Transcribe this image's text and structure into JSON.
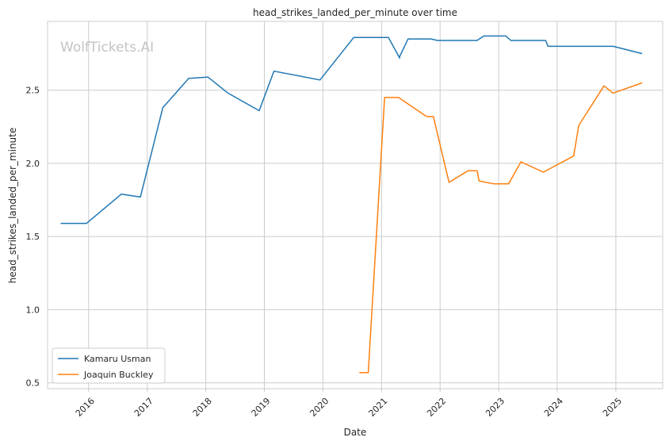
{
  "chart_data": {
    "type": "line",
    "title": "head_strikes_landed_per_minute over time",
    "xlabel": "Date",
    "ylabel": "head_strikes_landed_per_minute",
    "watermark": "WolfTickets.AI",
    "x_ticks": [
      "2016",
      "2017",
      "2018",
      "2019",
      "2020",
      "2021",
      "2022",
      "2023",
      "2024",
      "2025"
    ],
    "y_ticks": [
      "0.5",
      "1.0",
      "1.5",
      "2.0",
      "2.5"
    ],
    "xlim": [
      "2015-04-20",
      "2025-10-20"
    ],
    "ylim": [
      0.46,
      2.97
    ],
    "grid": true,
    "legend_position": "lower-left",
    "series": [
      {
        "name": "Kamaru Usman",
        "color": "#1f77b4",
        "points": [
          [
            "2015-07-11",
            1.59
          ],
          [
            "2015-12-19",
            1.59
          ],
          [
            "2016-07-23",
            1.79
          ],
          [
            "2016-11-19",
            1.77
          ],
          [
            "2017-04-08",
            2.38
          ],
          [
            "2017-09-16",
            2.58
          ],
          [
            "2018-01-14",
            2.59
          ],
          [
            "2018-05-19",
            2.48
          ],
          [
            "2018-11-30",
            2.36
          ],
          [
            "2019-03-02",
            2.63
          ],
          [
            "2019-12-14",
            2.57
          ],
          [
            "2020-07-11",
            2.86
          ],
          [
            "2021-02-13",
            2.86
          ],
          [
            "2021-04-24",
            2.72
          ],
          [
            "2021-04-24",
            2.73
          ],
          [
            "2021-06-15",
            2.85
          ],
          [
            "2021-11-06",
            2.85
          ],
          [
            "2021-12-15",
            2.84
          ],
          [
            "2022-08-20",
            2.84
          ],
          [
            "2022-10-01",
            2.87
          ],
          [
            "2023-02-15",
            2.87
          ],
          [
            "2023-03-18",
            2.84
          ],
          [
            "2023-10-21",
            2.84
          ],
          [
            "2023-11-05",
            2.8
          ],
          [
            "2024-12-15",
            2.8
          ],
          [
            "2025-06-14",
            2.75
          ]
        ]
      },
      {
        "name": "Joaquin Buckley",
        "color": "#ff7f0e",
        "points": [
          [
            "2020-08-15",
            0.57
          ],
          [
            "2020-10-10",
            0.57
          ],
          [
            "2021-01-20",
            2.45
          ],
          [
            "2021-04-17",
            2.45
          ],
          [
            "2021-10-09",
            2.32
          ],
          [
            "2021-11-20",
            2.32
          ],
          [
            "2022-02-26",
            1.87
          ],
          [
            "2022-06-25",
            1.95
          ],
          [
            "2022-08-20",
            1.95
          ],
          [
            "2022-09-01",
            1.88
          ],
          [
            "2022-12-03",
            1.86
          ],
          [
            "2023-03-04",
            1.86
          ],
          [
            "2023-05-20",
            2.01
          ],
          [
            "2023-10-07",
            1.94
          ],
          [
            "2024-04-13",
            2.05
          ],
          [
            "2024-05-15",
            2.26
          ],
          [
            "2024-10-19",
            2.53
          ],
          [
            "2024-12-14",
            2.48
          ],
          [
            "2025-06-14",
            2.55
          ]
        ]
      }
    ]
  }
}
